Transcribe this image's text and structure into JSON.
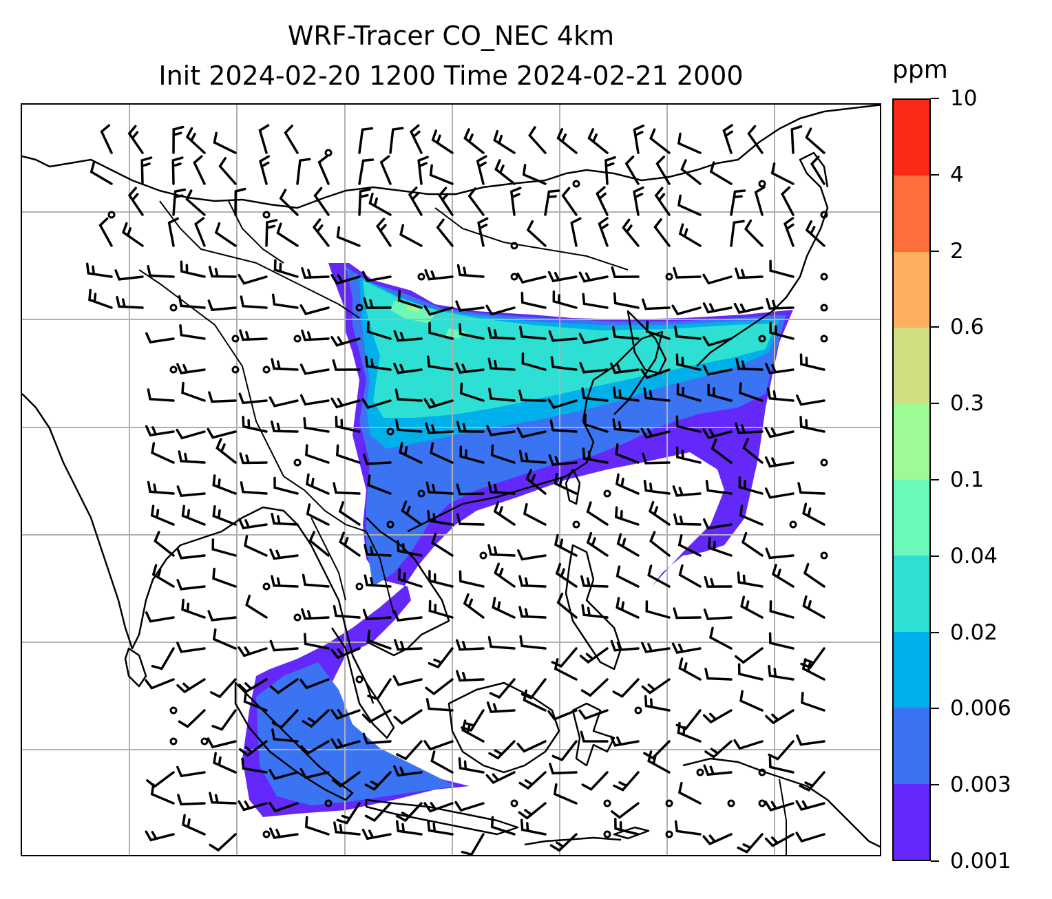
{
  "title": {
    "line1": "WRF-Tracer CO_NEC 4km",
    "line2": "Init 2024-02-20 1200 Time 2024-02-21 2000"
  },
  "colorbar": {
    "unit": "ppm",
    "levels": [
      "0.001",
      "0.003",
      "0.006",
      "0.02",
      "0.04",
      "0.1",
      "0.3",
      "0.6",
      "2",
      "4",
      "10"
    ],
    "colors": [
      "#6429fa",
      "#3a74f3",
      "#00b0ea",
      "#2ee0d3",
      "#6cf8b8",
      "#9dfb95",
      "#d0e080",
      "#feaf5f",
      "#fe6e3c",
      "#fb2a17"
    ]
  },
  "map": {
    "gridlines": true,
    "layers": [
      "coastlines",
      "borders",
      "wind-barbs",
      "co-tracer-plume"
    ]
  }
}
